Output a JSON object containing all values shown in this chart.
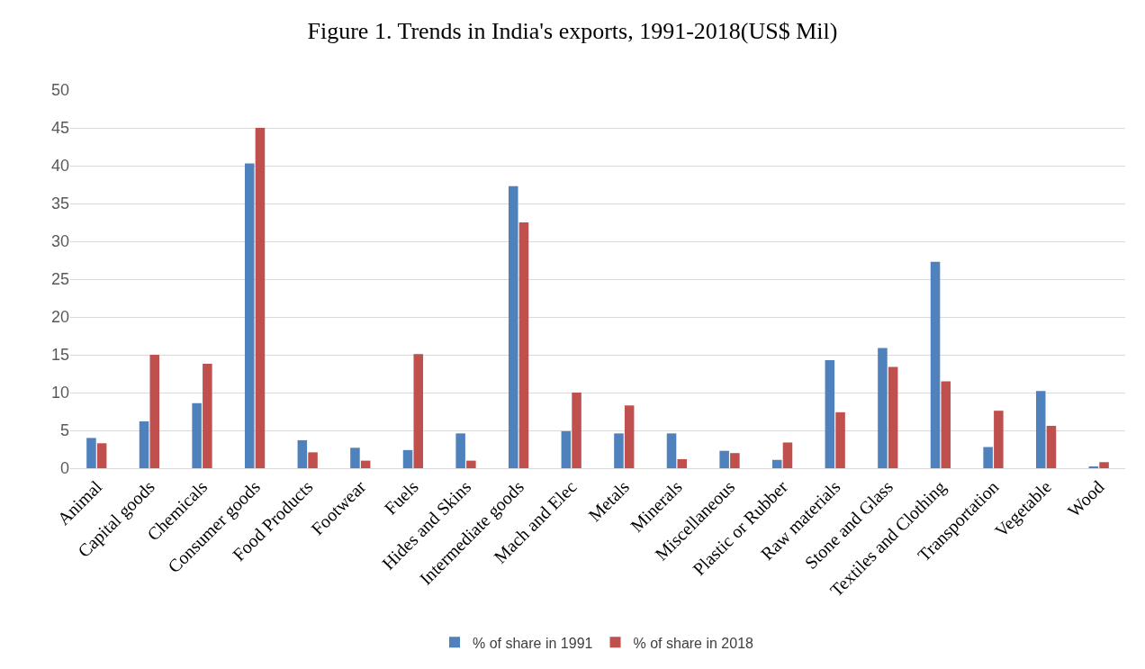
{
  "chart_data": {
    "type": "bar",
    "title": "Figure 1. Trends in India's exports, 1991-2018(US$ Mil)",
    "categories": [
      "Animal",
      "Capital goods",
      "Chemicals",
      "Consumer goods",
      "Food Products",
      "Footwear",
      "Fuels",
      "Hides and Skins",
      "Intermediate goods",
      "Mach and Elec",
      "Metals",
      "Minerals",
      "Miscellaneous",
      "Plastic or Rubber",
      "Raw materials",
      "Stone and Glass",
      "Textiles and Clothing",
      "Transportation",
      "Vegetable",
      "Wood"
    ],
    "series": [
      {
        "name": "% of share in 1991",
        "color": "#4f81bd",
        "values": [
          4.0,
          6.2,
          8.6,
          40.3,
          3.7,
          2.7,
          2.4,
          4.6,
          37.3,
          4.9,
          4.6,
          4.6,
          2.3,
          1.1,
          14.3,
          15.9,
          27.3,
          2.8,
          10.2,
          0.2
        ]
      },
      {
        "name": "% of share in 2018",
        "color": "#c0504d",
        "values": [
          3.3,
          15.0,
          13.8,
          45.0,
          2.1,
          1.0,
          15.1,
          1.0,
          32.5,
          10.0,
          8.3,
          1.2,
          2.0,
          3.4,
          7.4,
          13.4,
          11.5,
          7.6,
          5.6,
          0.8
        ]
      }
    ],
    "ylim": [
      0,
      50
    ],
    "yticks": [
      0,
      5,
      10,
      15,
      20,
      25,
      30,
      35,
      40,
      45,
      50
    ],
    "grid": "y",
    "legend": "bottom"
  }
}
